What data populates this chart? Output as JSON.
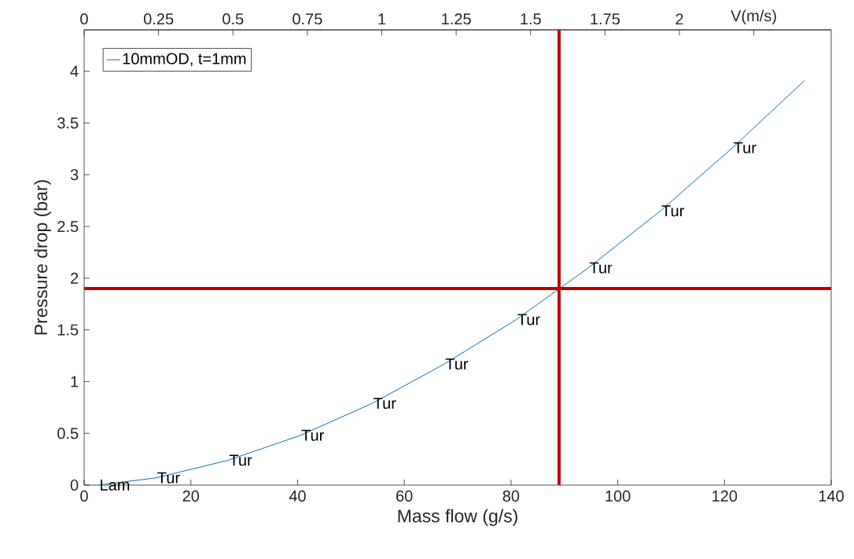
{
  "chart_data": {
    "type": "line",
    "xlabel": "Mass flow (g/s)",
    "ylabel": "Pressure drop (bar)",
    "x": [
      2.7,
      13.5,
      27,
      40.5,
      54,
      67.5,
      81,
      94.5,
      108,
      121.5,
      135
    ],
    "series": [
      {
        "name": "10mmOD, t=1mm",
        "color": "#0072bd",
        "values": [
          0,
          0.07,
          0.24,
          0.48,
          0.79,
          1.17,
          1.6,
          2.1,
          2.65,
          3.26,
          3.91
        ]
      }
    ],
    "xlim": [
      0,
      140
    ],
    "xticks": [
      0,
      20,
      40,
      60,
      80,
      100,
      120,
      140
    ],
    "ylim": [
      0,
      4.4
    ],
    "yticks": [
      0,
      0.5,
      1,
      1.5,
      2,
      2.5,
      3,
      3.5,
      4
    ],
    "x2lim": [
      0,
      2.51
    ],
    "x2ticks": [
      0,
      0.25,
      0.5,
      0.75,
      1,
      1.25,
      1.5,
      1.75,
      2,
      {
        "value": 2.25,
        "label": "V(m/s)"
      }
    ],
    "ref_lines": [
      {
        "axis": "x",
        "value": 89,
        "color": "#c00000"
      },
      {
        "axis": "y",
        "value": 1.9,
        "color": "#c00000"
      }
    ],
    "annotations": [
      {
        "text": "Lam",
        "x": 2.7,
        "y": 0
      },
      {
        "text": "Tur",
        "x": 13.5,
        "y": 0.07
      },
      {
        "text": "Tur",
        "x": 27,
        "y": 0.24
      },
      {
        "text": "Tur",
        "x": 40.5,
        "y": 0.48
      },
      {
        "text": "Tur",
        "x": 54,
        "y": 0.79
      },
      {
        "text": "Tur",
        "x": 67.5,
        "y": 1.17
      },
      {
        "text": "Tur",
        "x": 81,
        "y": 1.6
      },
      {
        "text": "Tur",
        "x": 94.5,
        "y": 2.1
      },
      {
        "text": "Tur",
        "x": 108,
        "y": 2.65
      },
      {
        "text": "Tur",
        "x": 121.5,
        "y": 3.26
      }
    ],
    "legend": "top left",
    "grid": false,
    "marker": "none",
    "line_style": "solid"
  }
}
